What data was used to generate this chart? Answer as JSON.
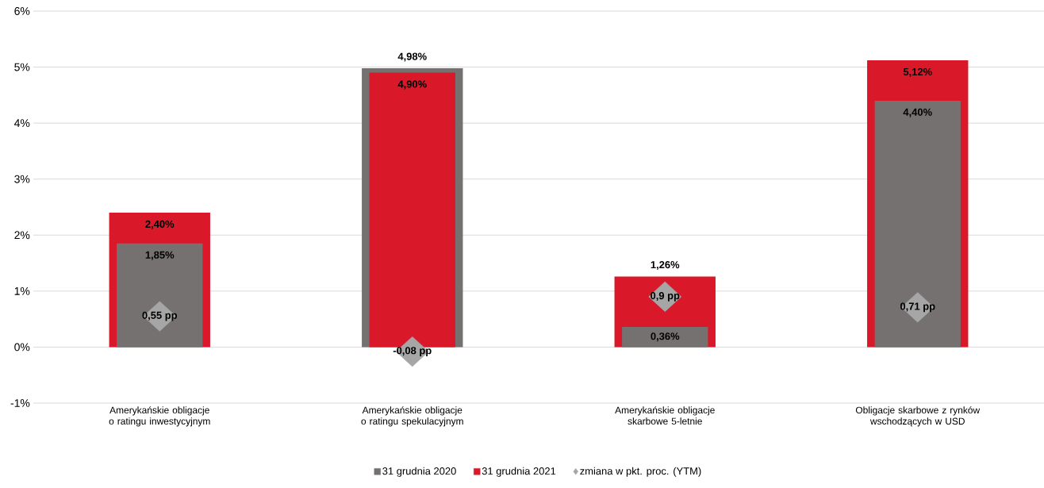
{
  "chart_data": {
    "type": "bar",
    "categories": [
      "Amerykańskie obligacje o ratingu inwestycyjnym",
      "Amerykańskie obligacje o ratingu spekulacyjnym",
      "Amerykańskie obligacje skarbowe 5-letnie",
      "Obligacje skarbowe z rynków wschodzących w USD"
    ],
    "series": [
      {
        "name": "31 grudnia 2020",
        "color": "#767171",
        "values": [
          1.85,
          4.98,
          0.36,
          4.4
        ],
        "value_labels": [
          "1,85%",
          "4,98%",
          "0,36%",
          "4,40%"
        ]
      },
      {
        "name": "31 grudnia 2021",
        "color": "#d9192a",
        "values": [
          2.4,
          4.9,
          1.26,
          5.12
        ],
        "value_labels": [
          "2,40%",
          "4,90%",
          "1,26%",
          "5,12%"
        ]
      },
      {
        "name": "zmiana w pkt. proc. (YTM)",
        "type": "scatter",
        "marker": "diamond",
        "color": "#a6a6a6",
        "values": [
          0.55,
          -0.08,
          0.9,
          0.71
        ],
        "value_labels": [
          "0,55 pp",
          "-0,08 pp",
          "0,9 pp",
          "0,71 pp"
        ]
      }
    ],
    "ylim": [
      -1,
      6
    ],
    "yticks": [
      {
        "value": -1,
        "label": "-1%"
      },
      {
        "value": 0,
        "label": "0%"
      },
      {
        "value": 1,
        "label": "1%"
      },
      {
        "value": 2,
        "label": "2%"
      },
      {
        "value": 3,
        "label": "3%"
      },
      {
        "value": 4,
        "label": "4%"
      },
      {
        "value": 5,
        "label": "5%"
      },
      {
        "value": 6,
        "label": "6%"
      }
    ],
    "grid": "y",
    "legend": "bottom"
  }
}
